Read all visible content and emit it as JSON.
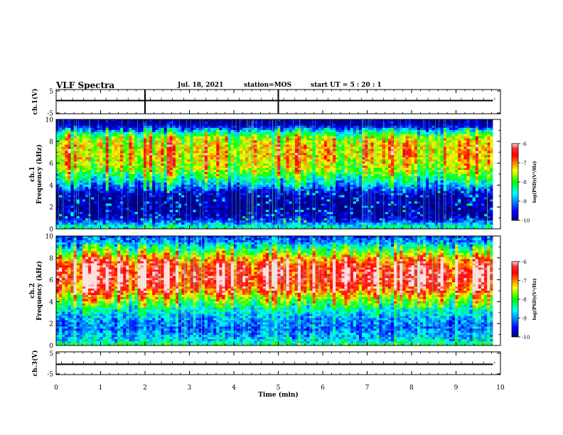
{
  "header": {
    "title": "VLF Spectra",
    "date": "Jul. 18, 2021",
    "station": "station=MOS",
    "start": "start UT =  5 : 20 : 1"
  },
  "chart_data": [
    {
      "type": "line",
      "panel": "ch1-waveform",
      "ylabel": "ch.1(V)",
      "ylim": [
        -5,
        5
      ],
      "yticks": [
        "5",
        "-5"
      ],
      "x": [
        0,
        9.83
      ],
      "y": [
        0,
        0
      ],
      "xlim": [
        0,
        10
      ]
    },
    {
      "type": "heatmap",
      "panel": "ch1-spectrogram",
      "ylabel": "ch.1\nFrequency (kHz)",
      "ylim": [
        0,
        10
      ],
      "yticks": [
        "0",
        "2",
        "4",
        "6",
        "8",
        "10"
      ],
      "xlim": [
        0,
        10
      ],
      "data_end_min": 9.83,
      "colorbar": {
        "min": -10,
        "max": -6,
        "ticks": [
          "-6",
          "-7",
          "-8",
          "-9",
          "-10"
        ],
        "label": "log(PSD)(V²/Hz)",
        "colormap": "jet"
      },
      "profile": [
        {
          "f": 0.0,
          "v": -8.4
        },
        {
          "f": 0.3,
          "v": -8.6
        },
        {
          "f": 0.6,
          "v": -9.2
        },
        {
          "f": 1.0,
          "v": -9.8
        },
        {
          "f": 2.0,
          "v": -10.0
        },
        {
          "f": 3.0,
          "v": -9.9
        },
        {
          "f": 3.5,
          "v": -9.5
        },
        {
          "f": 4.0,
          "v": -8.9
        },
        {
          "f": 4.8,
          "v": -8.2
        },
        {
          "f": 5.5,
          "v": -7.6
        },
        {
          "f": 6.5,
          "v": -7.3
        },
        {
          "f": 7.5,
          "v": -7.3
        },
        {
          "f": 8.3,
          "v": -7.6
        },
        {
          "f": 8.8,
          "v": -8.4
        },
        {
          "f": 9.2,
          "v": -9.3
        },
        {
          "f": 9.6,
          "v": -10.0
        },
        {
          "f": 10.0,
          "v": -10.0
        }
      ]
    },
    {
      "type": "heatmap",
      "panel": "ch2-spectrogram",
      "ylabel": "ch.2\nFrequency (kHz)",
      "ylim": [
        0,
        10
      ],
      "yticks": [
        "0",
        "2",
        "4",
        "6",
        "8",
        "10"
      ],
      "xlim": [
        0,
        10
      ],
      "data_end_min": 9.83,
      "colorbar": {
        "min": -10,
        "max": -6,
        "ticks": [
          "-6",
          "-7",
          "-8",
          "-9",
          "-10"
        ],
        "label": "log(PSD)(V²/Hz)",
        "colormap": "jet"
      },
      "profile": [
        {
          "f": 0.0,
          "v": -8.2
        },
        {
          "f": 0.5,
          "v": -8.8
        },
        {
          "f": 1.5,
          "v": -9.2
        },
        {
          "f": 2.5,
          "v": -9.0
        },
        {
          "f": 3.5,
          "v": -8.4
        },
        {
          "f": 4.3,
          "v": -7.7
        },
        {
          "f": 5.0,
          "v": -6.9
        },
        {
          "f": 6.0,
          "v": -6.4
        },
        {
          "f": 7.0,
          "v": -6.5
        },
        {
          "f": 7.8,
          "v": -7.0
        },
        {
          "f": 8.4,
          "v": -7.8
        },
        {
          "f": 9.0,
          "v": -8.5
        },
        {
          "f": 9.5,
          "v": -9.1
        },
        {
          "f": 10.0,
          "v": -9.4
        }
      ]
    },
    {
      "type": "line",
      "panel": "ch3-waveform",
      "ylabel": "ch.3(V)",
      "ylim": [
        -5,
        5
      ],
      "yticks": [
        "5",
        "-5"
      ],
      "x": [
        0,
        9.83
      ],
      "y": [
        0,
        0
      ],
      "xlim": [
        0,
        10
      ],
      "xlabel": "Time (min)",
      "xticks": [
        "0",
        "1",
        "2",
        "3",
        "4",
        "5",
        "6",
        "7",
        "8",
        "9",
        "10"
      ]
    }
  ]
}
